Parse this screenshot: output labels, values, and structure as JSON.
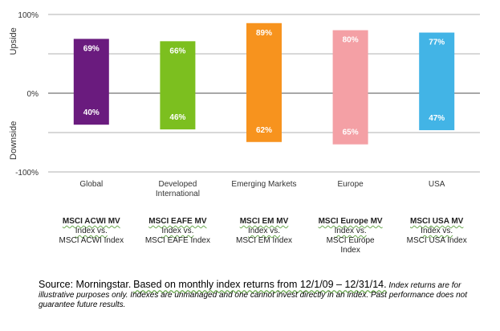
{
  "chart_data": {
    "type": "bar",
    "categories": [
      "Global",
      "Developed International",
      "Emerging Markets",
      "Europe",
      "USA"
    ],
    "category_lines": [
      [
        "Global"
      ],
      [
        "Developed",
        "International"
      ],
      [
        "Emerging Markets"
      ],
      [
        "Europe"
      ],
      [
        "USA"
      ]
    ],
    "series": [
      {
        "name": "Upside",
        "values": [
          69,
          66,
          89,
          80,
          77
        ]
      },
      {
        "name": "Downside",
        "values": [
          40,
          46,
          62,
          65,
          47
        ]
      }
    ],
    "upside_labels": [
      "69%",
      "66%",
      "89%",
      "80%",
      "77%"
    ],
    "downside_labels": [
      "40%",
      "46%",
      "62%",
      "65%",
      "47%"
    ],
    "colors": [
      "#6a1b7e",
      "#7cbf1f",
      "#f7931e",
      "#f4a0a5",
      "#42b4e6"
    ],
    "ylim": [
      -100,
      100
    ],
    "yticks": [
      "100%",
      "0%",
      "-100%"
    ],
    "ylabel_upper": "Upside",
    "ylabel_lower": "Downside",
    "grid": true
  },
  "index_labels": [
    {
      "name": "MSCI ACWI MV",
      "vs": "Index vs.",
      "bench": [
        "MSCI ACWI Index"
      ]
    },
    {
      "name": "MSCI EAFE MV",
      "vs": "Index vs.",
      "bench": [
        "MSCI EAFE Index"
      ]
    },
    {
      "name": "MSCI EM MV",
      "vs": "Index vs.",
      "bench": [
        "MSCI EM Index"
      ]
    },
    {
      "name": "MSCI Europe MV",
      "vs": "Index vs.",
      "bench": [
        "MSCI Europe",
        "Index"
      ]
    },
    {
      "name": "MSCI USA MV",
      "vs": "Index vs.",
      "bench": [
        "MSCI USA Index"
      ]
    }
  ],
  "footnote": {
    "source": "Source: Morningstar.",
    "basis": "Based on monthly index returns from 12/1/09 – 12/31/14.",
    "disclaimer": "Index returns are for illustrative purposes only.  Indexes are unmanaged and one cannot invest directly in an index. Past performance does not guarantee future results."
  }
}
